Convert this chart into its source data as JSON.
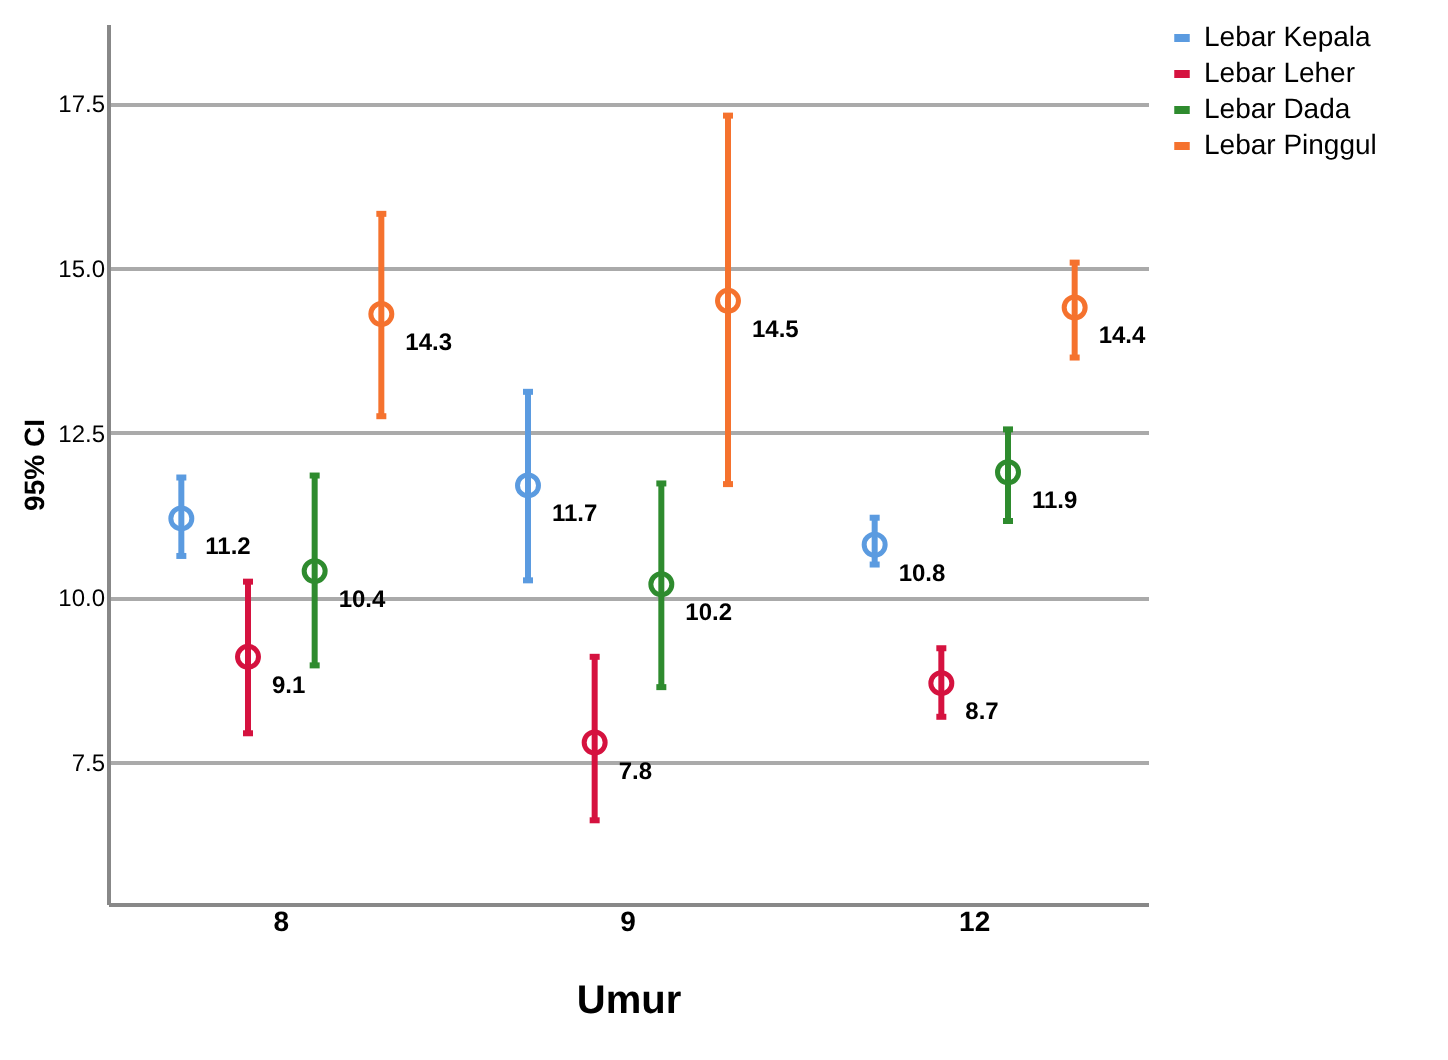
{
  "chart_data": {
    "type": "scatter",
    "xlabel": "Umur",
    "ylabel": "95% CI",
    "categories": [
      "8",
      "9",
      "12"
    ],
    "ylim": [
      5.35,
      18.7
    ],
    "yticks": [
      {
        "value": 7.5,
        "label": "7.5"
      },
      {
        "value": 10,
        "label": "10.0"
      },
      {
        "value": 12.5,
        "label": "12.5"
      },
      {
        "value": 15,
        "label": "15.0"
      },
      {
        "value": 17.5,
        "label": "17.5"
      }
    ],
    "grid": "y",
    "legend": "top right",
    "marker": "circle",
    "data_labels": true,
    "series": [
      {
        "name": "Lebar Kepala",
        "color": "#5b9be0",
        "values": [
          11.2,
          11.7,
          10.8
        ],
        "errors": [
          [
            10.63,
            11.82
          ],
          [
            10.26,
            13.12
          ],
          [
            10.5,
            11.21
          ]
        ]
      },
      {
        "name": "Lebar Leher",
        "color": "#d5123f",
        "values": [
          9.1,
          7.8,
          8.7
        ],
        "errors": [
          [
            7.94,
            10.24
          ],
          [
            6.62,
            9.1
          ],
          [
            8.19,
            9.23
          ]
        ]
      },
      {
        "name": "Lebar Dada",
        "color": "#2e8b2e",
        "values": [
          10.4,
          10.2,
          11.9
        ],
        "errors": [
          [
            8.97,
            11.85
          ],
          [
            8.64,
            11.73
          ],
          [
            11.16,
            12.55
          ]
        ]
      },
      {
        "name": "Lebar Pinggul",
        "color": "#f5722e",
        "values": [
          14.3,
          14.5,
          14.4
        ],
        "errors": [
          [
            12.75,
            15.82
          ],
          [
            11.72,
            17.31
          ],
          [
            13.64,
            15.08
          ]
        ]
      }
    ]
  }
}
